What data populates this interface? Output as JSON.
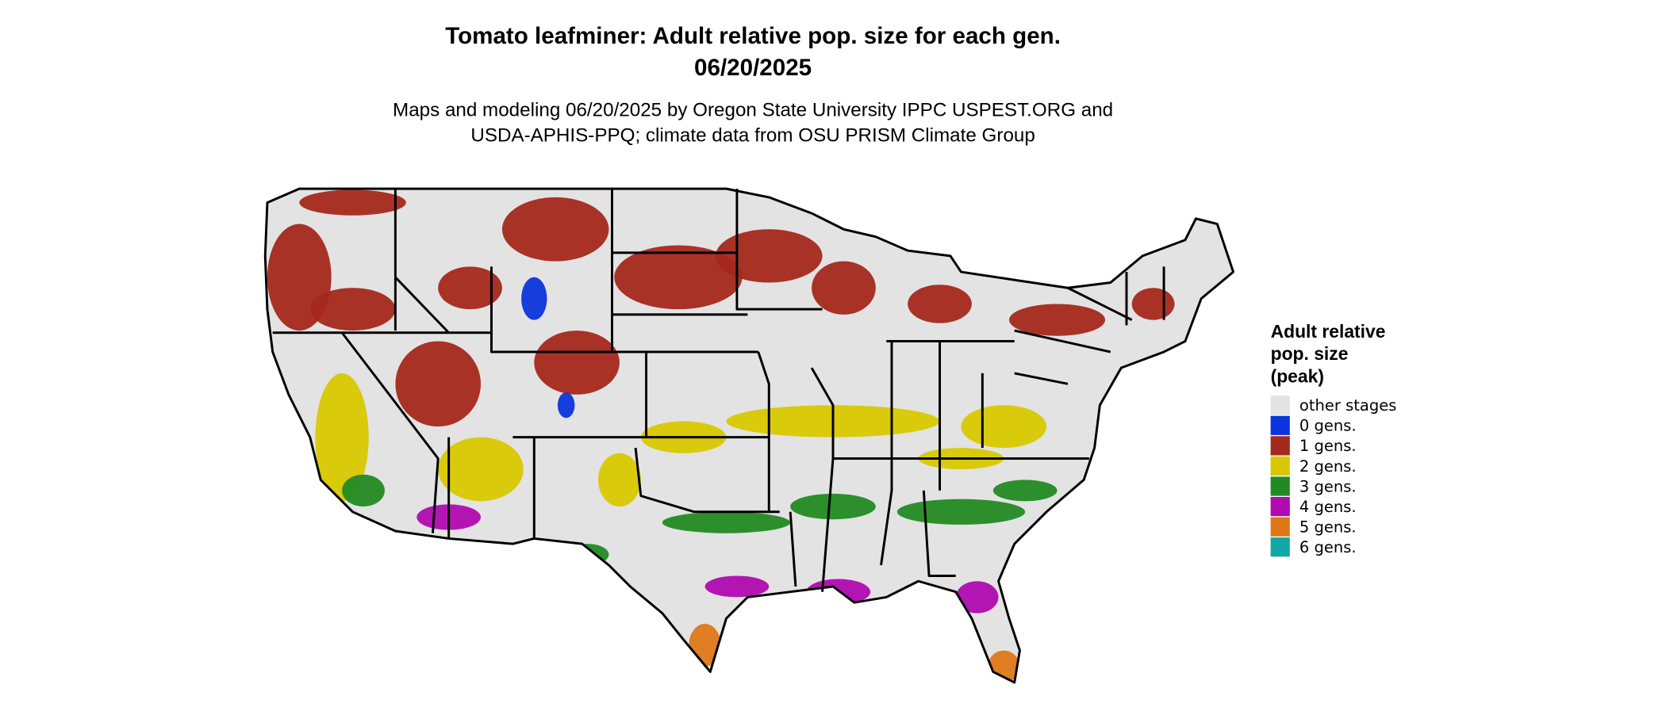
{
  "title": "Tomato leafminer: Adult relative pop. size for each gen.",
  "date": "06/20/2025",
  "subtitle_lines": [
    "Maps and modeling 06/20/2025 by Oregon State University IPPC USPEST.ORG and",
    "USDA-APHIS-PPQ; climate data from OSU PRISM Climate Group"
  ],
  "legend": {
    "title_lines": [
      "Adult relative",
      "pop. size",
      "(peak)"
    ],
    "items": [
      {
        "label": "other stages",
        "color": "#e3e3e3"
      },
      {
        "label": "0 gens.",
        "color": "#0a35dc"
      },
      {
        "label": "1 gens.",
        "color": "#a5281c"
      },
      {
        "label": "2 gens.",
        "color": "#d8c800"
      },
      {
        "label": "3 gens.",
        "color": "#228a22"
      },
      {
        "label": "4 gens.",
        "color": "#b00ab0"
      },
      {
        "label": "5 gens.",
        "color": "#de7818"
      },
      {
        "label": "6 gens.",
        "color": "#12a8a8"
      }
    ]
  }
}
